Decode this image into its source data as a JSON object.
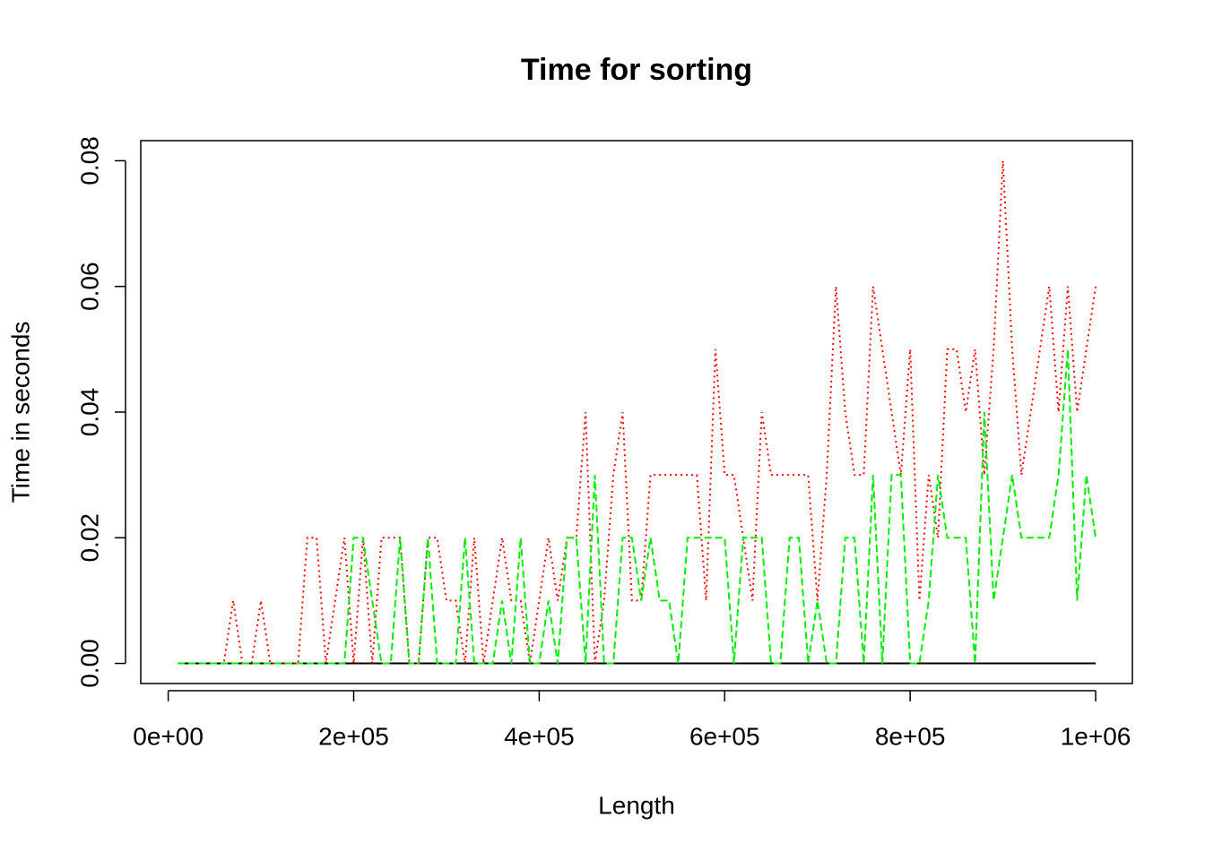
{
  "chart_data": {
    "type": "line",
    "title": "Time for sorting",
    "x_label": "Length",
    "y_label": "Time in seconds",
    "x": [
      10000,
      20000,
      30000,
      40000,
      50000,
      60000,
      70000,
      80000,
      90000,
      100000,
      110000,
      120000,
      130000,
      140000,
      150000,
      160000,
      170000,
      180000,
      190000,
      200000,
      210000,
      220000,
      230000,
      240000,
      250000,
      260000,
      270000,
      280000,
      290000,
      300000,
      310000,
      320000,
      330000,
      340000,
      350000,
      360000,
      370000,
      380000,
      390000,
      400000,
      410000,
      420000,
      430000,
      440000,
      450000,
      460000,
      470000,
      480000,
      490000,
      500000,
      510000,
      520000,
      530000,
      540000,
      550000,
      560000,
      570000,
      580000,
      590000,
      600000,
      610000,
      620000,
      630000,
      640000,
      650000,
      660000,
      670000,
      680000,
      690000,
      700000,
      710000,
      720000,
      730000,
      740000,
      750000,
      760000,
      770000,
      780000,
      790000,
      800000,
      810000,
      820000,
      830000,
      840000,
      850000,
      860000,
      870000,
      880000,
      890000,
      900000,
      910000,
      920000,
      930000,
      940000,
      950000,
      960000,
      970000,
      980000,
      990000,
      1000000
    ],
    "series": [
      {
        "color": "#000000",
        "linestyle": "solid",
        "values": [
          0,
          0,
          0,
          0,
          0,
          0,
          0,
          0,
          0,
          0,
          0,
          0,
          0,
          0,
          0,
          0,
          0,
          0,
          0,
          0,
          0,
          0,
          0,
          0,
          0,
          0,
          0,
          0,
          0,
          0,
          0,
          0,
          0,
          0,
          0,
          0,
          0,
          0,
          0,
          0,
          0,
          0,
          0,
          0,
          0,
          0,
          0,
          0,
          0,
          0,
          0,
          0,
          0,
          0,
          0,
          0,
          0,
          0,
          0,
          0,
          0,
          0,
          0,
          0,
          0,
          0,
          0,
          0,
          0,
          0,
          0,
          0,
          0,
          0,
          0,
          0,
          0,
          0,
          0,
          0,
          0,
          0,
          0,
          0,
          0,
          0,
          0,
          0,
          0,
          0,
          0,
          0,
          0,
          0,
          0,
          0,
          0,
          0,
          0,
          0
        ]
      },
      {
        "color": "#ff0000",
        "linestyle": "dotted",
        "values": [
          0,
          0,
          0,
          0,
          0,
          0,
          0.01,
          0,
          0,
          0.01,
          0,
          0,
          0,
          0,
          0.02,
          0.02,
          0,
          0.01,
          0.02,
          0,
          0.02,
          0,
          0.02,
          0.02,
          0.02,
          0,
          0,
          0.02,
          0.02,
          0.01,
          0.01,
          0,
          0.02,
          0,
          0.01,
          0.02,
          0.01,
          0.01,
          0,
          0.01,
          0.02,
          0.01,
          0.02,
          0.02,
          0.04,
          0,
          0.01,
          0.03,
          0.04,
          0.01,
          0.01,
          0.03,
          0.03,
          0.03,
          0.03,
          0.03,
          0.03,
          0.01,
          0.05,
          0.03,
          0.03,
          0.02,
          0.01,
          0.04,
          0.03,
          0.03,
          0.03,
          0.03,
          0.03,
          0.01,
          0.03,
          0.06,
          0.04,
          0.03,
          0.03,
          0.06,
          0.05,
          0.04,
          0.03,
          0.05,
          0.01,
          0.03,
          0.02,
          0.05,
          0.05,
          0.04,
          0.05,
          0.03,
          0.05,
          0.08,
          0.05,
          0.03,
          0.04,
          0.05,
          0.06,
          0.04,
          0.06,
          0.04,
          0.05,
          0.06
        ]
      },
      {
        "color": "#00ee00",
        "linestyle": "dashed",
        "values": [
          0,
          0,
          0,
          0,
          0,
          0,
          0,
          0,
          0,
          0,
          0,
          0,
          0,
          0,
          0,
          0,
          0,
          0,
          0,
          0.02,
          0.02,
          0.01,
          0,
          0,
          0.02,
          0,
          0,
          0.02,
          0,
          0,
          0,
          0.02,
          0,
          0,
          0,
          0.01,
          0,
          0.02,
          0,
          0,
          0.01,
          0,
          0.02,
          0.02,
          0,
          0.03,
          0,
          0,
          0.02,
          0.02,
          0.01,
          0.02,
          0.01,
          0.01,
          0,
          0.02,
          0.02,
          0.02,
          0.02,
          0.02,
          0,
          0.02,
          0.02,
          0.02,
          0,
          0,
          0.02,
          0.02,
          0,
          0.01,
          0,
          0,
          0.02,
          0.02,
          0,
          0.03,
          0,
          0.03,
          0.03,
          0,
          0,
          0.01,
          0.03,
          0.02,
          0.02,
          0.02,
          0,
          0.04,
          0.01,
          0.02,
          0.03,
          0.02,
          0.02,
          0.02,
          0.02,
          0.03,
          0.05,
          0.01,
          0.03,
          0.02
        ]
      }
    ],
    "xlim": [
      -29600,
      1039600
    ],
    "ylim": [
      -0.0032,
      0.0832
    ],
    "xticks": [
      {
        "value": 0,
        "label": "0e+00"
      },
      {
        "value": 200000,
        "label": "2e+05"
      },
      {
        "value": 400000,
        "label": "4e+05"
      },
      {
        "value": 600000,
        "label": "6e+05"
      },
      {
        "value": 800000,
        "label": "8e+05"
      },
      {
        "value": 1000000,
        "label": "1e+06"
      }
    ],
    "yticks": [
      {
        "value": 0,
        "label": "0.00"
      },
      0.02,
      0.04,
      0.06,
      0.08
    ],
    "grid": false
  }
}
